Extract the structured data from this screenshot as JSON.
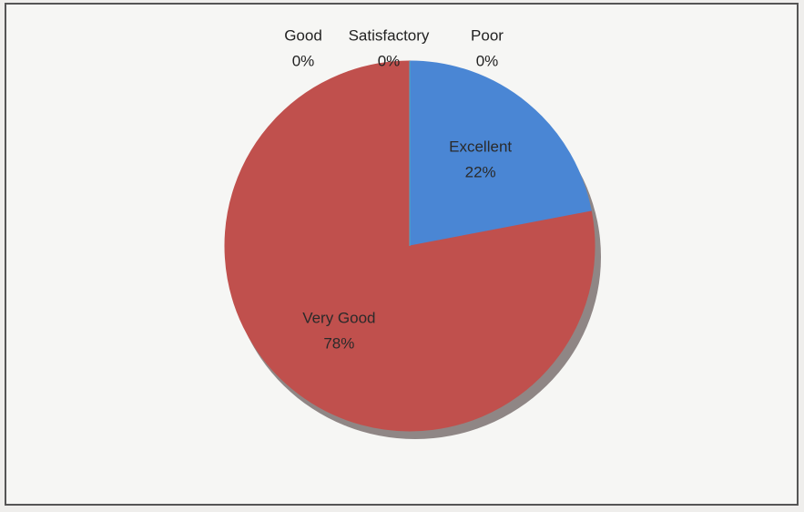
{
  "chart_data": {
    "type": "pie",
    "categories": [
      "Excellent",
      "Very Good",
      "Good",
      "Satisfactory",
      "Poor"
    ],
    "values": [
      22,
      78,
      0,
      0,
      0
    ],
    "value_labels": [
      "22%",
      "78%",
      "0%",
      "0%",
      "0%"
    ],
    "colors": [
      "#4a86d4",
      "#c0504d",
      "#9bbb59",
      "#8064a2",
      "#4bacc6"
    ],
    "start_angle": 0,
    "direction": "clockwise"
  }
}
